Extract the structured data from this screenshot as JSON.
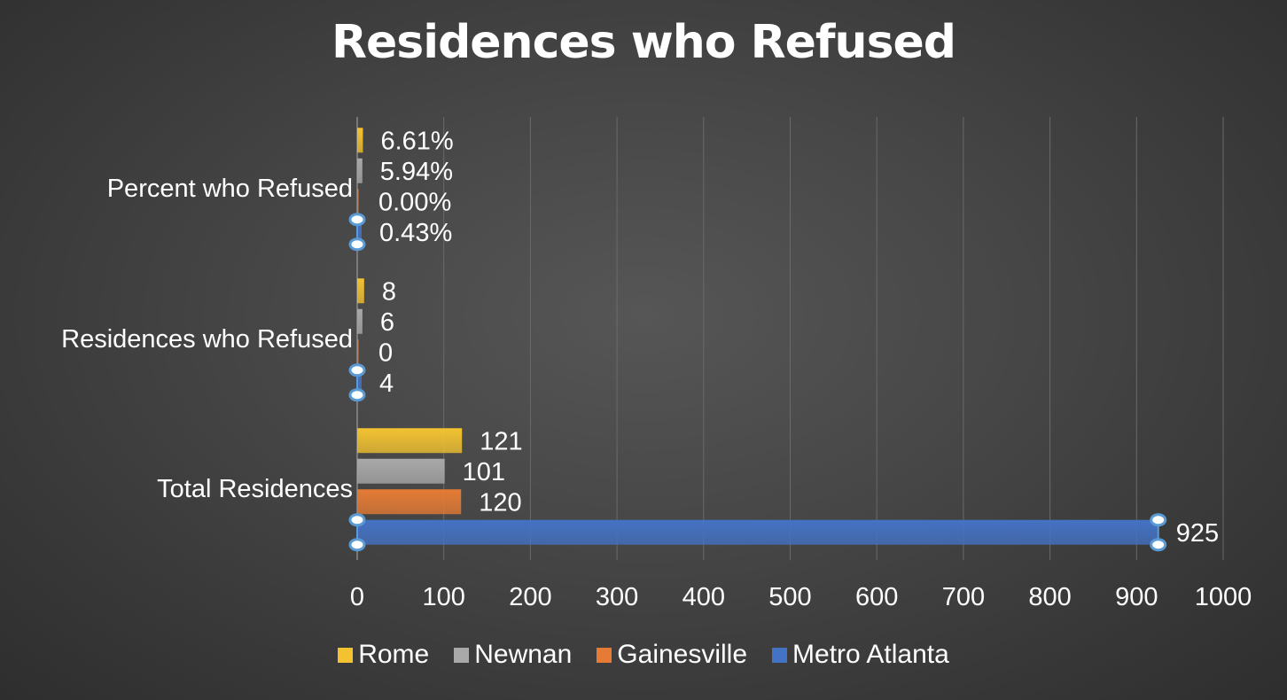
{
  "chart_data": {
    "type": "bar",
    "orientation": "horizontal",
    "title": "Residences who Refused",
    "categories": [
      "Percent who Refused",
      "Residences who Refused",
      "Total Residences"
    ],
    "series": [
      {
        "name": "Rome",
        "color": "#f2c230",
        "values": [
          6.61,
          8,
          121
        ],
        "labels": [
          "6.61%",
          "8",
          "121"
        ]
      },
      {
        "name": "Newnan",
        "color": "#a9a9a9",
        "values": [
          5.94,
          6,
          101
        ],
        "labels": [
          "5.94%",
          "6",
          "101"
        ]
      },
      {
        "name": "Gainesville",
        "color": "#e57b35",
        "values": [
          0.0,
          0,
          120
        ],
        "labels": [
          "0.00%",
          "0",
          "120"
        ]
      },
      {
        "name": "Metro Atlanta",
        "color": "#4472c4",
        "values": [
          0.43,
          4,
          925
        ],
        "labels": [
          "0.43%",
          "4",
          "925"
        ]
      }
    ],
    "xlim": [
      0,
      1000
    ],
    "xticks": [
      "0",
      "100",
      "200",
      "300",
      "400",
      "500",
      "600",
      "700",
      "800",
      "900",
      "1000"
    ],
    "xlabel": "",
    "ylabel": "",
    "grid": "vertical",
    "legend": "bottom",
    "selected_series": "Metro Atlanta"
  }
}
